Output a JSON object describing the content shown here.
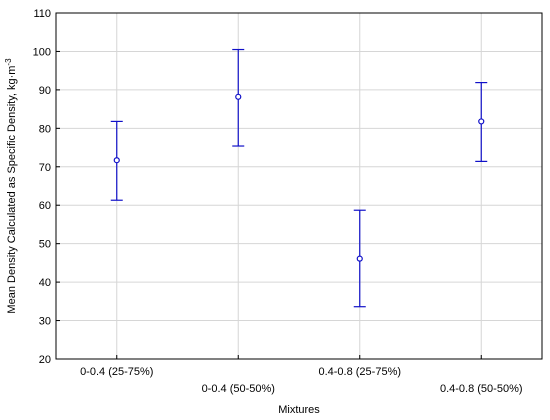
{
  "chart_data": {
    "type": "errorbar",
    "title": "",
    "xlabel": "Mixtures",
    "ylabel": "Mean Density Calculated as Specific Density, kg·m",
    "ylabel_superscript": "-3",
    "ylim": [
      20,
      110
    ],
    "yticks": [
      20,
      30,
      40,
      50,
      60,
      70,
      80,
      90,
      100,
      110
    ],
    "xlim": [
      0.5,
      4.5
    ],
    "grid": true,
    "categories": [
      "0-0.4 (25-75%)",
      "0-0.4 (50-50%)",
      "0.4-0.8 (25-75%)",
      "0.4-0.8 (50-50%)"
    ],
    "series": [
      {
        "values": [
          71.7,
          88.2,
          46.1,
          81.8
        ],
        "lower": [
          61.3,
          75.4,
          33.6,
          71.4
        ],
        "upper": [
          81.8,
          100.5,
          58.7,
          91.9
        ],
        "color": "#1010c8"
      }
    ]
  }
}
